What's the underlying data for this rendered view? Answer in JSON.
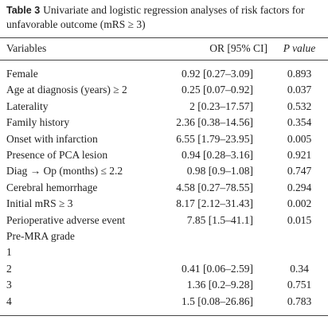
{
  "caption": {
    "label": "Table 3",
    "text": "Univariate and logistic regression analyses of risk factors for unfavorable outcome (mRS ≥ 3)"
  },
  "table": {
    "header": [
      "Variables",
      "OR [95% CI]",
      "P value"
    ],
    "rows": [
      [
        "Female",
        "0.92 [0.27–3.09]",
        "0.893"
      ],
      [
        "Age at diagnosis (years) ≥ 2",
        "0.25 [0.07–0.92]",
        "0.037"
      ],
      [
        "Laterality",
        "2 [0.23–17.57]",
        "0.532"
      ],
      [
        "Family history",
        "2.36 [0.38–14.56]",
        "0.354"
      ],
      [
        "Onset with infarction",
        "6.55 [1.79–23.95]",
        "0.005"
      ],
      [
        "Presence of PCA lesion",
        "0.94 [0.28–3.16]",
        "0.921"
      ],
      [
        "Diag → Op (months) ≤ 2.2",
        "0.98 [0.9–1.08]",
        "0.747"
      ],
      [
        "Cerebral hemorrhage",
        "4.58 [0.27–78.55]",
        "0.294"
      ],
      [
        "Initial mRS ≥ 3",
        "8.17 [2.12–31.43]",
        "0.002"
      ],
      [
        "Perioperative adverse event",
        "7.85 [1.5–41.1]",
        "0.015"
      ],
      [
        "Pre-MRA grade"
      ],
      [
        "1"
      ],
      [
        "2",
        "0.41 [0.06–2.59]",
        "0.34"
      ],
      [
        "3",
        "1.36 [0.2–9.28]",
        "0.751"
      ],
      [
        "4",
        "1.5 [0.08–26.86]",
        "0.783"
      ]
    ]
  }
}
